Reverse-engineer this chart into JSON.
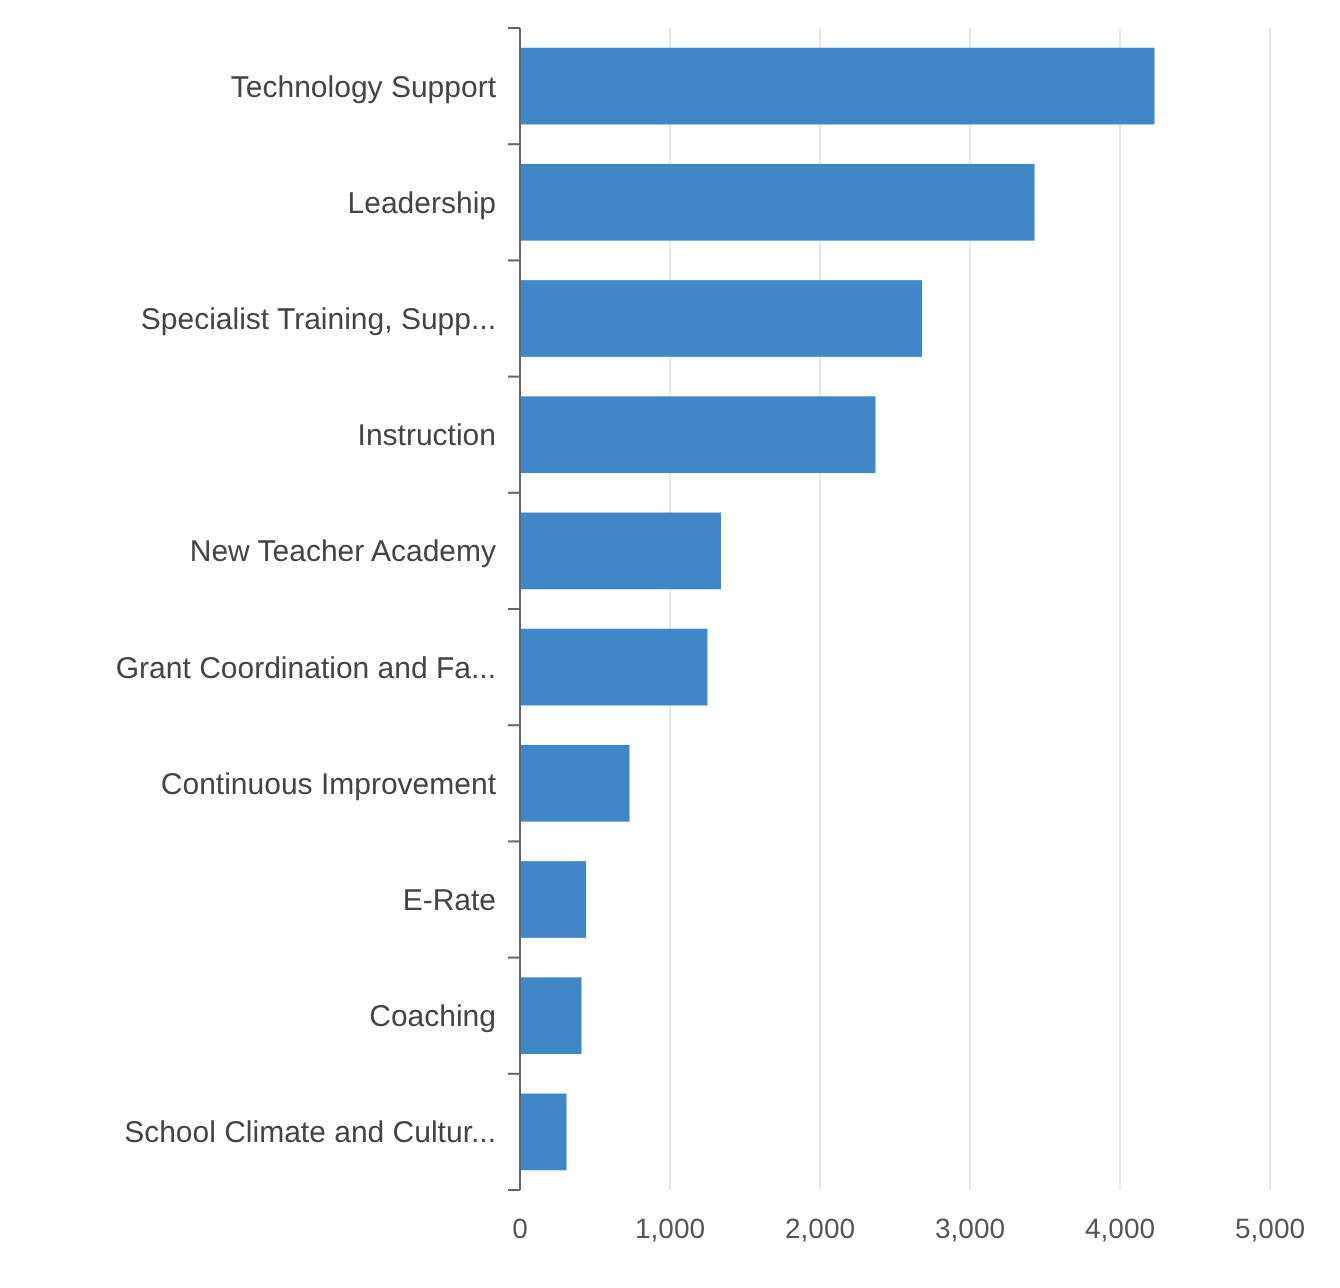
{
  "chart_data": {
    "type": "bar",
    "orientation": "horizontal",
    "categories": [
      "Technology Support",
      "Leadership",
      "Specialist Training, Supp...",
      "Instruction",
      "New Teacher Academy",
      "Grant Coordination and Fa...",
      "Continuous Improvement",
      "E-Rate",
      "Coaching",
      "School Climate and Cultur..."
    ],
    "values": [
      4230,
      3430,
      2680,
      2370,
      1340,
      1250,
      730,
      440,
      410,
      310
    ],
    "color": "#4087c7",
    "xlim": [
      0,
      5000
    ],
    "xticks": [
      0,
      {
        "value": 1000,
        "label": "1,000"
      },
      {
        "value": 2000,
        "label": "2,000"
      },
      {
        "value": 3000,
        "label": "3,000"
      },
      {
        "value": 4000,
        "label": "4,000"
      },
      {
        "value": 5000,
        "label": "5,000"
      }
    ],
    "grid": "x"
  }
}
